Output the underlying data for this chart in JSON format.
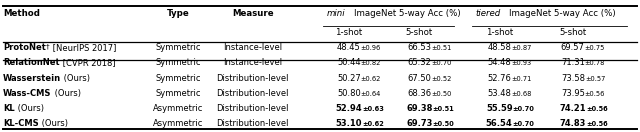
{
  "rows": [
    {
      "method": "ProtoNet",
      "dagger": true,
      "suffix": " [NeurIPS 2017]",
      "type": "Symmetric",
      "measure": "Instance-level",
      "vals": [
        "48.45",
        "0.96",
        "66.53",
        "0.51",
        "48.58",
        "0.87",
        "69.57",
        "0.75"
      ],
      "bold_vals": [
        false,
        false,
        false,
        false
      ],
      "group": 0
    },
    {
      "method": "RelationNet",
      "dagger": false,
      "suffix": " [CVPR 2018]",
      "type": "Symmetric",
      "measure": "Instance-level",
      "vals": [
        "50.44",
        "0.82",
        "65.32",
        "0.70",
        "54.48",
        "0.93",
        "71.31",
        "0.78"
      ],
      "bold_vals": [
        false,
        false,
        false,
        false
      ],
      "group": 0
    },
    {
      "method": "Wasserstein",
      "dagger": false,
      "suffix": " (Ours)",
      "type": "Symmetric",
      "measure": "Distribution-level",
      "vals": [
        "50.27",
        "0.62",
        "67.50",
        "0.52",
        "52.76",
        "0.71",
        "73.58",
        "0.57"
      ],
      "bold_vals": [
        false,
        false,
        false,
        false
      ],
      "group": 1
    },
    {
      "method": "Wass-CMS",
      "dagger": false,
      "suffix": " (Ours)",
      "type": "Symmetric",
      "measure": "Distribution-level",
      "vals": [
        "50.80",
        "0.64",
        "68.36",
        "0.50",
        "53.48",
        "0.68",
        "73.95",
        "0.56"
      ],
      "bold_vals": [
        false,
        false,
        false,
        false
      ],
      "group": 1
    },
    {
      "method": "KL",
      "dagger": false,
      "suffix": " (Ours)",
      "type": "Asymmetric",
      "measure": "Distribution-level",
      "vals": [
        "52.94",
        "0.63",
        "69.38",
        "0.51",
        "55.59",
        "0.70",
        "74.21",
        "0.56"
      ],
      "bold_vals": [
        true,
        true,
        true,
        true
      ],
      "group": 1
    },
    {
      "method": "KL-CMS",
      "dagger": false,
      "suffix": " (Ours)",
      "type": "Asymmetric",
      "measure": "Distribution-level",
      "vals": [
        "53.10",
        "0.62",
        "69.73",
        "0.50",
        "56.54",
        "0.70",
        "74.83",
        "0.56"
      ],
      "bold_vals": [
        true,
        true,
        true,
        true
      ],
      "group": 1
    }
  ],
  "font_size": 6.0,
  "font_size_small": 4.8,
  "font_size_header": 6.2
}
